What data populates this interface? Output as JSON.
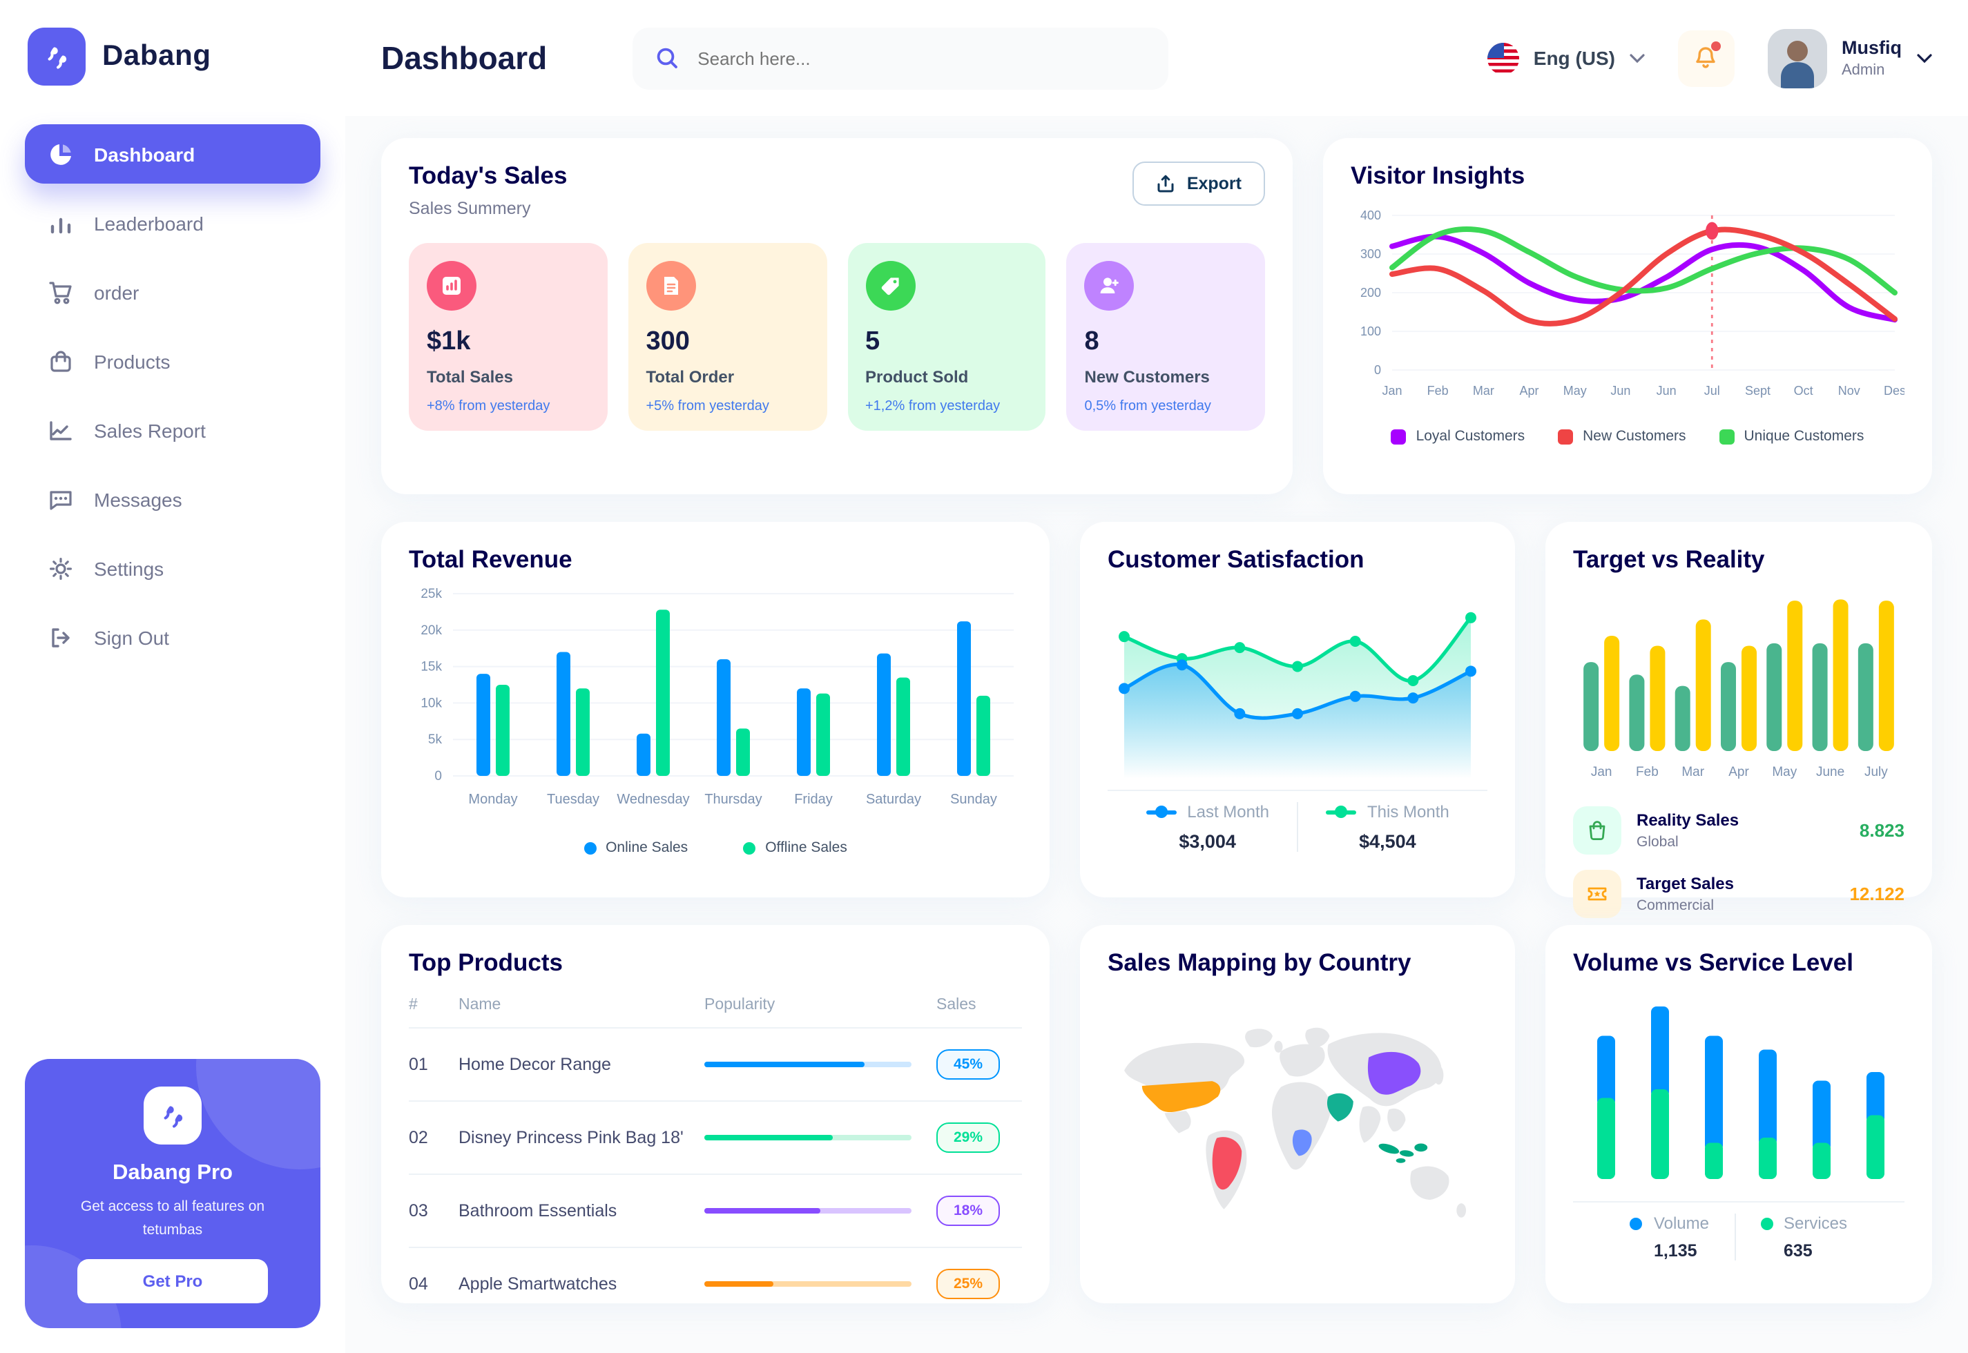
{
  "app": {
    "brand": "Dabang"
  },
  "header": {
    "page_title": "Dashboard",
    "search_placeholder": "Search here...",
    "language": "Eng (US)",
    "user": {
      "name": "Musfiq",
      "role": "Admin"
    }
  },
  "sidebar": {
    "items": [
      {
        "label": "Dashboard",
        "icon": "pie-chart-icon",
        "active": true
      },
      {
        "label": "Leaderboard",
        "icon": "bar-chart-icon"
      },
      {
        "label": "order",
        "icon": "cart-icon"
      },
      {
        "label": "Products",
        "icon": "bag-icon"
      },
      {
        "label": "Sales Report",
        "icon": "line-chart-icon"
      },
      {
        "label": "Messages",
        "icon": "message-icon"
      },
      {
        "label": "Settings",
        "icon": "gear-icon"
      },
      {
        "label": "Sign Out",
        "icon": "sign-out-icon"
      }
    ],
    "promo": {
      "title": "Dabang Pro",
      "subtitle": "Get access to all features on tetumbas",
      "button": "Get Pro"
    }
  },
  "today_sales": {
    "title": "Today's Sales",
    "subtitle": "Sales Summery",
    "export_label": "Export",
    "cards": [
      {
        "value": "$1k",
        "label": "Total Sales",
        "delta": "+8% from yesterday",
        "bg": "#FFE2E5",
        "icon_bg": "#FA5A7D",
        "icon": "bar-chart-icon"
      },
      {
        "value": "300",
        "label": "Total Order",
        "delta": "+5% from yesterday",
        "bg": "#FFF4DE",
        "icon_bg": "#FF947A",
        "icon": "order-file-icon"
      },
      {
        "value": "5",
        "label": "Product Sold",
        "delta": "+1,2% from yesterday",
        "bg": "#DCFCE7",
        "icon_bg": "#3CD856",
        "icon": "tag-icon"
      },
      {
        "value": "8",
        "label": "New Customers",
        "delta": "0,5% from yesterday",
        "bg": "#F3E8FF",
        "icon_bg": "#BF83FF",
        "icon": "user-plus-icon"
      }
    ]
  },
  "chart_data": {
    "visitor_insights": {
      "type": "line",
      "title": "Visitor Insights",
      "x": [
        "Jan",
        "Feb",
        "Mar",
        "Apr",
        "May",
        "Jun",
        "Jun",
        "Jul",
        "Sept",
        "Oct",
        "Nov",
        "Des"
      ],
      "ylim": [
        0,
        400
      ],
      "yticks": [
        0,
        100,
        200,
        300,
        400
      ],
      "grid": true,
      "legend_position": "bottom",
      "series": [
        {
          "name": "Loyal Customers",
          "color": "#A700FF",
          "values": [
            320,
            345,
            302,
            225,
            182,
            185,
            240,
            312,
            318,
            258,
            162,
            130
          ]
        },
        {
          "name": "New Customers",
          "color": "#EF4444",
          "values": [
            248,
            262,
            205,
            128,
            130,
            200,
            300,
            360,
            350,
            303,
            222,
            132
          ]
        },
        {
          "name": "Unique Customers",
          "color": "#3CD856",
          "values": [
            265,
            350,
            360,
            305,
            242,
            208,
            212,
            262,
            302,
            315,
            286,
            200
          ]
        }
      ],
      "marker": {
        "series": "New Customers",
        "x_index": 7,
        "value": 360
      }
    },
    "total_revenue": {
      "type": "bar",
      "title": "Total Revenue",
      "categories": [
        "Monday",
        "Tuesday",
        "Wednesday",
        "Thursday",
        "Friday",
        "Saturday",
        "Sunday"
      ],
      "ylim": [
        0,
        25
      ],
      "ytick_labels": [
        "0",
        "5k",
        "10k",
        "15k",
        "20k",
        "25k"
      ],
      "grid": true,
      "legend_position": "bottom",
      "series": [
        {
          "name": "Online Sales",
          "color": "#0095FF",
          "values": [
            14,
            17,
            5.8,
            16,
            12,
            16.8,
            21.2
          ]
        },
        {
          "name": "Offline Sales",
          "color": "#00E096",
          "values": [
            12.5,
            12,
            22.8,
            6.5,
            11.3,
            13.5,
            11
          ]
        }
      ]
    },
    "customer_satisfaction": {
      "type": "area",
      "title": "Customer Satisfaction",
      "series": [
        {
          "name": "Last Month",
          "color": "#0095FF",
          "total": "$3,004",
          "values": [
            45,
            60,
            29,
            29,
            40,
            39,
            56
          ]
        },
        {
          "name": "This Month",
          "color": "#00E096",
          "total": "$4,504",
          "values": [
            78,
            64,
            71,
            59,
            75,
            50,
            90
          ]
        }
      ]
    },
    "target_vs_reality": {
      "type": "bar",
      "title": "Target vs Reality",
      "categories": [
        "Jan",
        "Feb",
        "Mar",
        "Apr",
        "May",
        "June",
        "July"
      ],
      "series": [
        {
          "name": "Reality Sales",
          "color": "#4AB58E",
          "values": [
            7.1,
            6.1,
            5.2,
            7.1,
            8.6,
            8.6,
            8.6
          ]
        },
        {
          "name": "Target Sales",
          "color": "#FFCF00",
          "values": [
            9.2,
            8.4,
            10.5,
            8.4,
            12,
            12.1,
            12
          ]
        }
      ],
      "legend": [
        {
          "label": "Reality Sales",
          "sub": "Global",
          "value": "8.823",
          "value_color": "#27AE60",
          "icon_bg": "#E2FFF3",
          "icon": "bag-icon"
        },
        {
          "label": "Target Sales",
          "sub": "Commercial",
          "value": "12.122",
          "value_color": "#FFA412",
          "icon_bg": "#FFF4DE",
          "icon": "ticket-icon"
        }
      ]
    },
    "volume_vs_service": {
      "type": "stacked-bar",
      "title": "Volume vs Service Level",
      "series": [
        {
          "name": "Volume",
          "color": "#0095FF",
          "total": "1,135",
          "values": [
            36,
            48,
            62,
            51,
            36,
            25
          ]
        },
        {
          "name": "Services",
          "color": "#00E096",
          "total": "635",
          "values": [
            47,
            52,
            21,
            24,
            21,
            37
          ]
        }
      ]
    }
  },
  "top_products": {
    "title": "Top Products",
    "headers": [
      "#",
      "Name",
      "Popularity",
      "Sales"
    ],
    "rows": [
      {
        "num": "01",
        "name": "Home Decor Range",
        "popularity": 77,
        "sales": "45%",
        "color": "#0095FF",
        "track": "#CDE7FF",
        "badge_bg": "#F0F9FF"
      },
      {
        "num": "02",
        "name": "Disney Princess Pink Bag 18'",
        "popularity": 62,
        "sales": "29%",
        "color": "#00E096",
        "track": "#C7F5E1",
        "badge_bg": "#F0FDF4"
      },
      {
        "num": "03",
        "name": "Bathroom Essentials",
        "popularity": 56,
        "sales": "18%",
        "color": "#884DFF",
        "track": "#D9C4FF",
        "badge_bg": "#FBF5FF"
      },
      {
        "num": "04",
        "name": "Apple Smartwatches",
        "popularity": 33,
        "sales": "25%",
        "color": "#FF8F0D",
        "track": "#FFD9A3",
        "badge_bg": "#FEF6E6"
      }
    ]
  },
  "sales_mapping": {
    "title": "Sales Mapping by Country",
    "land_color": "#E6E7E9",
    "countries": {
      "usa": "#FFA412",
      "brazil": "#F64E60",
      "saudi_arabia": "#13B092",
      "congo": "#6A8DFF",
      "china": "#8950FC",
      "indonesia": "#00A982"
    }
  }
}
